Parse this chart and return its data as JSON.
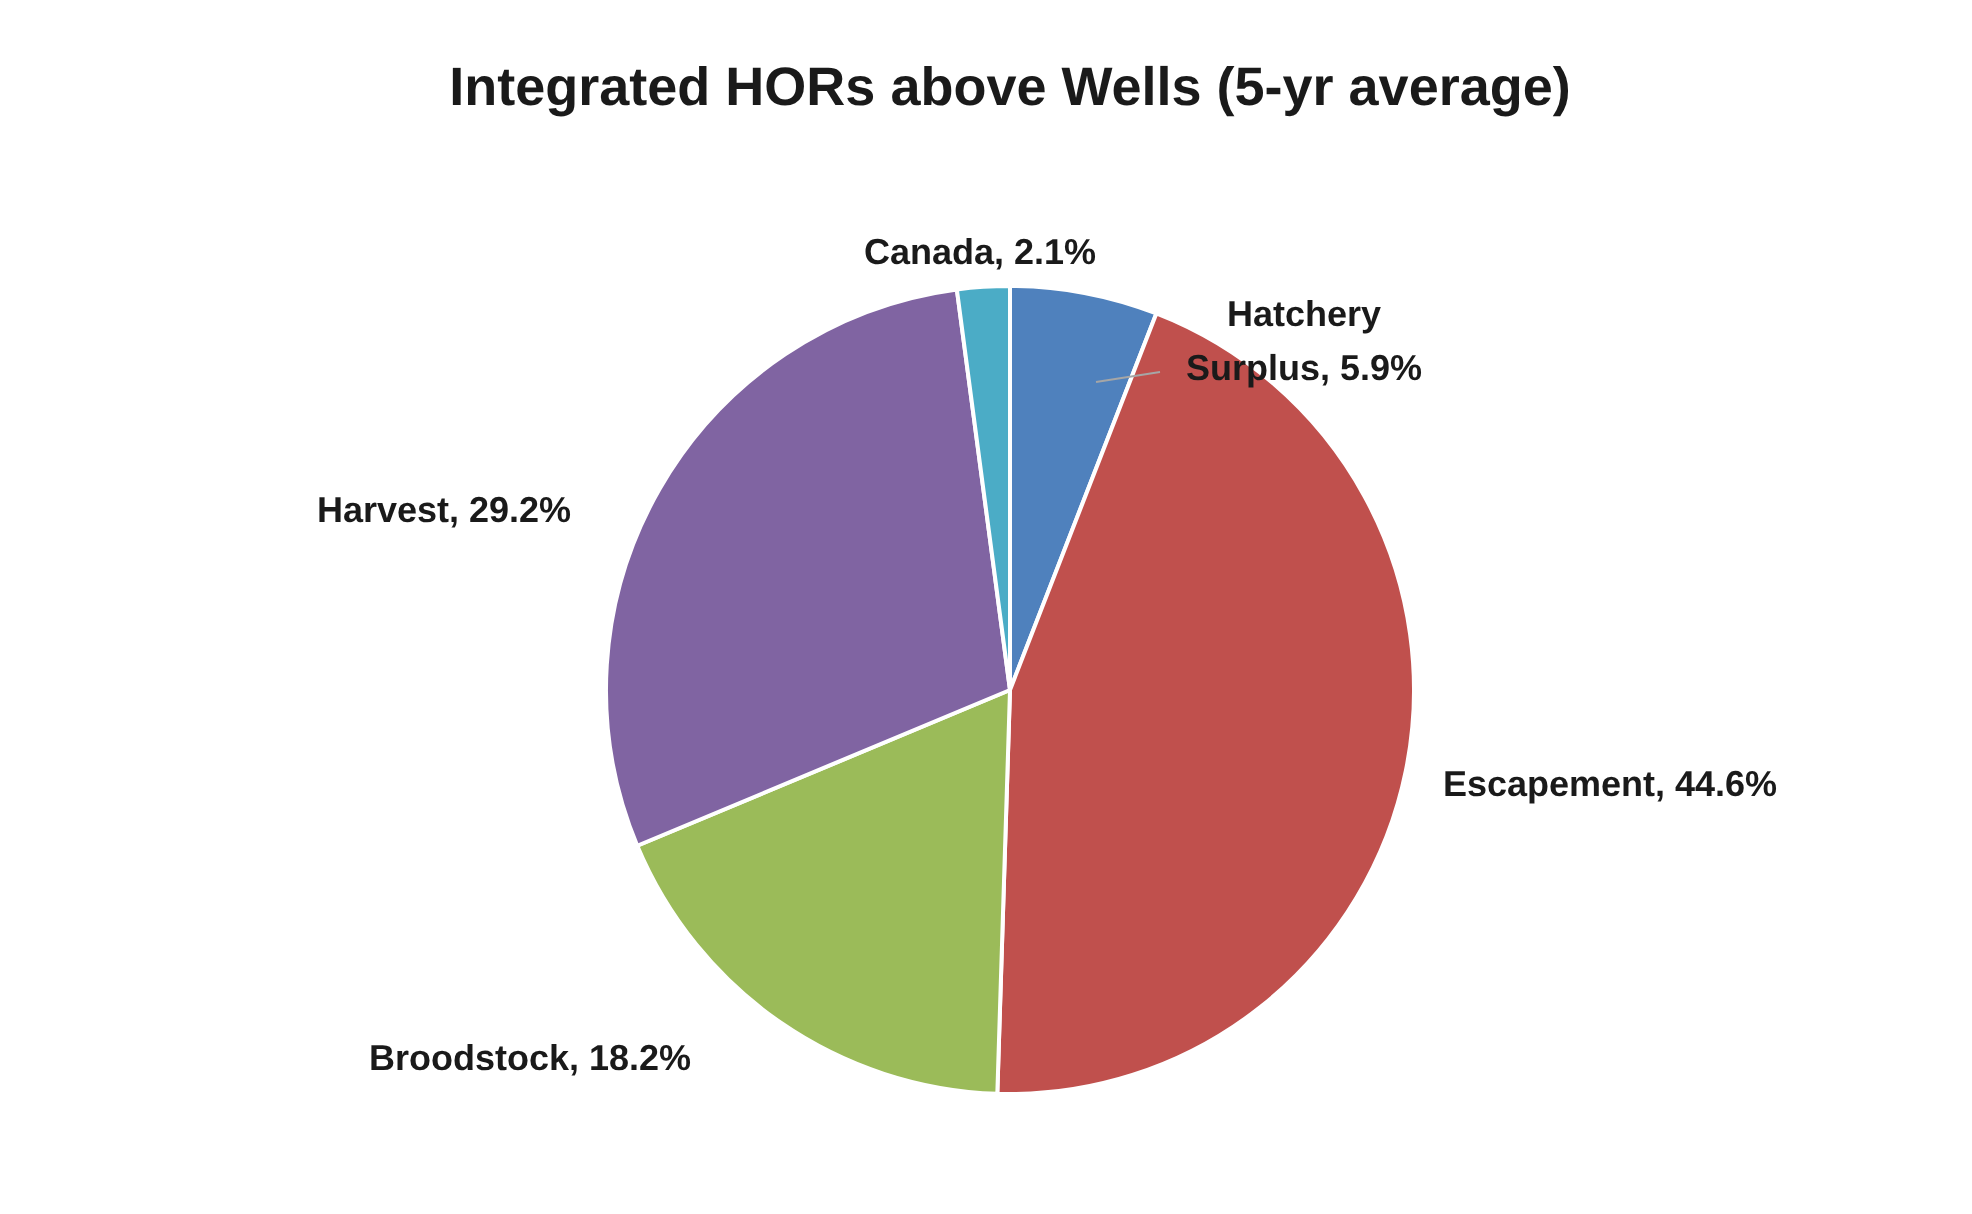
{
  "chart_data": {
    "type": "pie",
    "title": "Integrated HORs above Wells (5-yr average)",
    "categories": [
      "Hatchery Surplus",
      "Escapement",
      "Broodstock",
      "Harvest",
      "Canada"
    ],
    "values": [
      5.9,
      44.6,
      18.2,
      29.2,
      2.1
    ],
    "value_labels": [
      "5.9%",
      "44.6%",
      "18.2%",
      "29.2%",
      "2.1%"
    ],
    "colors": [
      "#4f81bd",
      "#c0504d",
      "#9bbb59",
      "#8064a2",
      "#4bacc6"
    ],
    "legend": false
  }
}
